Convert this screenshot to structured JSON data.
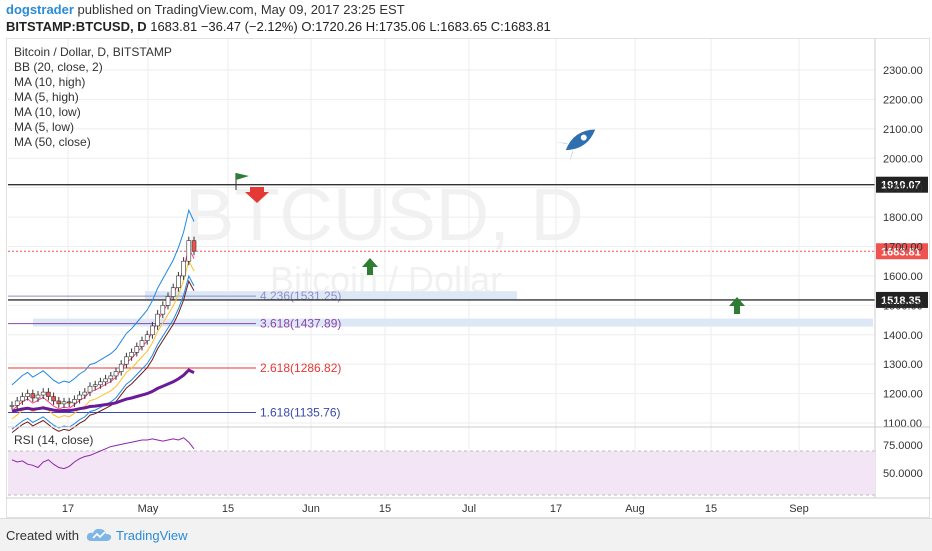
{
  "header": {
    "author": "dogstrader",
    "published_text": "published on TradingView.com, May 09, 2017 23:25 EST",
    "symbol": "BITSTAMP:BTCUSD, D",
    "last": "1683.81",
    "change": "−36.47 (−2.12%)",
    "o_label": "O:",
    "o_value": "1720.26",
    "h_label": "H:",
    "h_value": "1735.06",
    "l_label": "L:",
    "l_value": "1683.65",
    "c_label": "C:",
    "c_value": "1683.81"
  },
  "legend": [
    "Bitcoin / Dollar, D, BITSTAMP",
    "BB (20, close, 2)",
    "MA (10, high)",
    "MA (5, high)",
    "MA (10, low)",
    "MA (5, low)",
    "MA (50, close)"
  ],
  "watermark": {
    "symbol": "BTCUSD, D",
    "name": "Bitcoin / Dollar"
  },
  "rsi_label": "RSI (14, close)",
  "footer": {
    "created_with": "Created with",
    "brand": "TradingView"
  },
  "colors": {
    "up": "#26a69a",
    "down": "#ef5350",
    "grid": "#eeeeee",
    "fib_red": "#e53935",
    "fib_purple": "#8e44ad",
    "fib_blue": "#3949ab",
    "rsi_band": "#f3e5f5"
  },
  "chart_data": {
    "type": "line",
    "price_axis": {
      "min": 1100,
      "max": 2400,
      "ticks": [
        "2300.00",
        "2200.00",
        "2100.00",
        "2000.00",
        "1900.00",
        "1800.00",
        "1700.00",
        "1600.00",
        "1500.00",
        "1400.00",
        "1300.00",
        "1200.00",
        "1100.00"
      ]
    },
    "time_axis": {
      "ticks": [
        "17",
        "May",
        "15",
        "Jun",
        "15",
        "Jul",
        "17",
        "Aug",
        "15",
        "Sep"
      ]
    },
    "price_labels": [
      {
        "value": 1910.07,
        "text": "1910.07"
      },
      {
        "value": 1683.81,
        "text": "1683.81"
      },
      {
        "value": 1518.35,
        "text": "1518.35"
      }
    ],
    "horizontal_lines": [
      1910.07,
      1518.35
    ],
    "fib_levels": [
      {
        "ratio": "4.236",
        "value": 1531.25,
        "label": "4.236(1531.25)"
      },
      {
        "ratio": "3.618",
        "value": 1437.89,
        "label": "3.618(1437.89)"
      },
      {
        "ratio": "2.618",
        "value": 1286.82,
        "label": "2.618(1286.82)"
      },
      {
        "ratio": "1.618",
        "value": 1135.76,
        "label": "1.618(1135.76)"
      }
    ],
    "close_series": [
      1160,
      1175,
      1190,
      1200,
      1185,
      1195,
      1205,
      1190,
      1175,
      1165,
      1172,
      1168,
      1180,
      1195,
      1205,
      1225,
      1230,
      1240,
      1250,
      1260,
      1275,
      1300,
      1325,
      1340,
      1360,
      1380,
      1400,
      1430,
      1470,
      1500,
      1530,
      1560,
      1600,
      1650,
      1720,
      1684
    ],
    "rsi": {
      "ticks": [
        "75.0000",
        "50.0000"
      ],
      "upper": 70,
      "lower": 30
    },
    "annotations": [
      "green flag",
      "red down arrow",
      "green up arrow",
      "green up arrow",
      "blue rocket"
    ]
  }
}
